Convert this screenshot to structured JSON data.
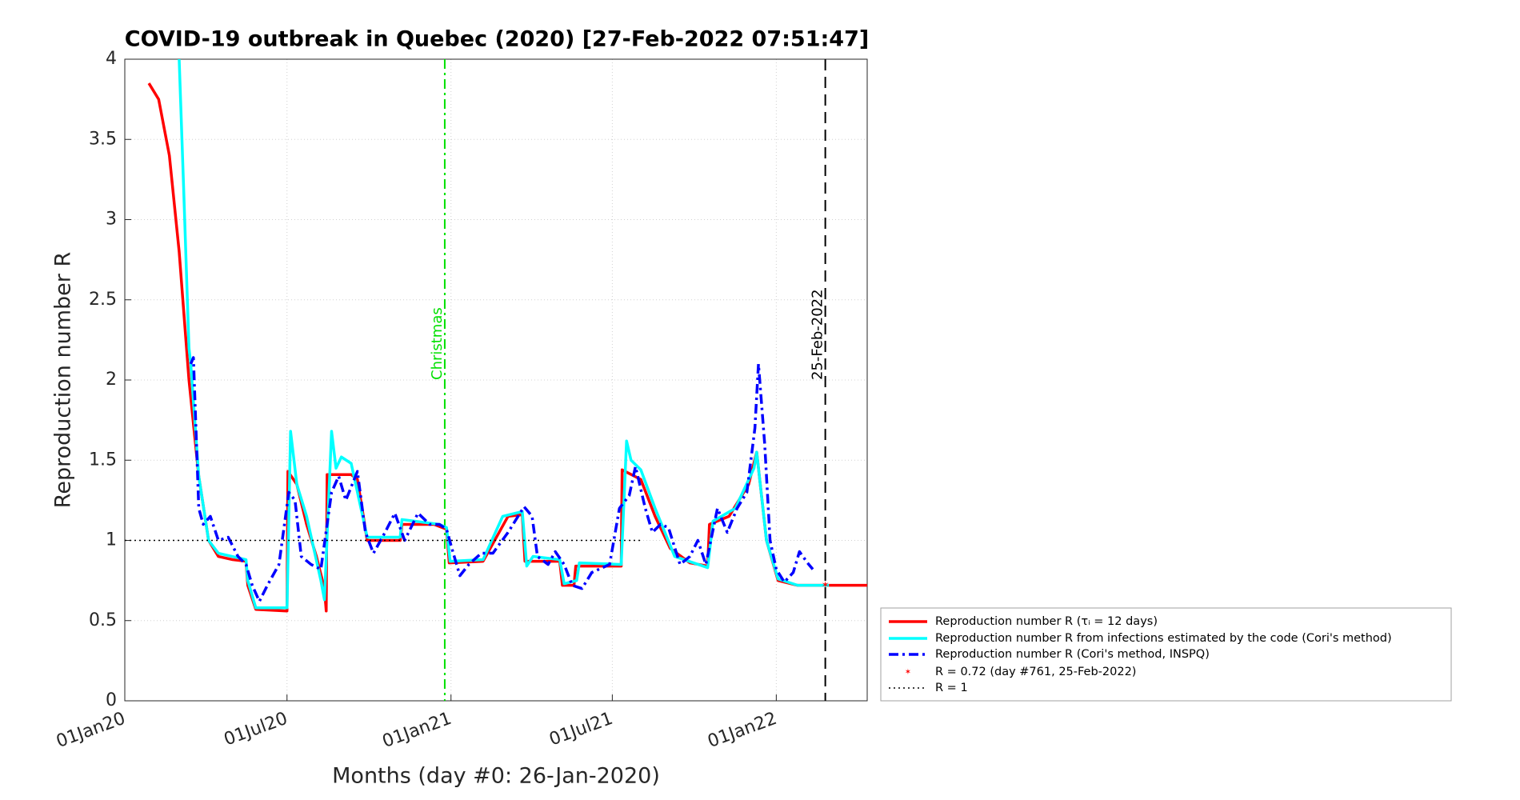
{
  "chart_data": {
    "type": "line",
    "title": "COVID-19 outbreak in Quebec (2020) [27-Feb-2022 07:51:47]",
    "xlabel": "Months (day #0: 26-Jan-2020)",
    "ylabel": "Reproduction number R",
    "xlim": [
      -25,
      808
    ],
    "ylim": [
      0,
      4
    ],
    "xticks": [
      {
        "value": -25,
        "label": "01Jan20"
      },
      {
        "value": 157,
        "label": "01Jul20"
      },
      {
        "value": 341,
        "label": "01Jan21"
      },
      {
        "value": 522,
        "label": "01Jul21"
      },
      {
        "value": 706,
        "label": "01Jan22"
      }
    ],
    "yticks": [
      0,
      0.5,
      1,
      1.5,
      2,
      2.5,
      3,
      3.5,
      4
    ],
    "grid": true,
    "legend": "outside-lower-right",
    "series": [
      {
        "name": "Reproduction number R (τᵢ = 12 days)",
        "color": "#ff0000",
        "style": "solid",
        "x": [
          2,
          13,
          25,
          36,
          47,
          58,
          69,
          80,
          96,
          111,
          113,
          122,
          157,
          158,
          168,
          179,
          190,
          199,
          201,
          202,
          229,
          236,
          247,
          284,
          286,
          322,
          336,
          339,
          377,
          405,
          421,
          424,
          463,
          466,
          479,
          481,
          532,
          533,
          554,
          570,
          587,
          609,
          629,
          631,
          653,
          675,
          684,
          695,
          708,
          730,
          761,
          808
        ],
        "values": [
          3.85,
          3.75,
          3.4,
          2.8,
          2.0,
          1.4,
          1.0,
          0.9,
          0.88,
          0.87,
          0.72,
          0.57,
          0.56,
          1.43,
          1.35,
          1.1,
          0.9,
          0.7,
          0.56,
          1.41,
          1.41,
          1.38,
          1.0,
          1.0,
          1.1,
          1.1,
          1.07,
          0.86,
          0.87,
          1.15,
          1.16,
          0.87,
          0.87,
          0.72,
          0.72,
          0.84,
          0.84,
          1.44,
          1.38,
          1.15,
          0.95,
          0.86,
          0.84,
          1.1,
          1.15,
          1.35,
          1.55,
          1.0,
          0.75,
          0.72,
          0.72,
          0.72
        ]
      },
      {
        "name": "Reproduction number R from infections estimated by the code (Cori's method)",
        "color": "#00ffff",
        "style": "solid",
        "x": [
          36,
          41,
          47,
          49,
          58,
          69,
          80,
          111,
          113,
          122,
          157,
          161,
          168,
          179,
          195,
          199,
          207,
          212,
          218,
          229,
          247,
          284,
          286,
          328,
          336,
          340,
          377,
          399,
          421,
          426,
          433,
          463,
          468,
          482,
          485,
          532,
          538,
          543,
          554,
          570,
          592,
          629,
          635,
          660,
          681,
          684,
          695,
          708,
          730,
          765
        ],
        "values": [
          4.0,
          3.2,
          2.2,
          2.1,
          1.4,
          1.0,
          0.92,
          0.88,
          0.75,
          0.58,
          0.58,
          1.68,
          1.35,
          1.15,
          0.75,
          0.63,
          1.68,
          1.45,
          1.52,
          1.48,
          1.02,
          1.02,
          1.13,
          1.1,
          1.08,
          0.87,
          0.88,
          1.15,
          1.18,
          0.84,
          0.9,
          0.88,
          0.73,
          0.75,
          0.86,
          0.85,
          1.62,
          1.5,
          1.44,
          1.2,
          0.9,
          0.83,
          1.12,
          1.2,
          1.45,
          1.55,
          1.0,
          0.76,
          0.72,
          0.72
        ]
      },
      {
        "name": "Reproduction number R (Cori's method, INSPQ)",
        "color": "#0000ff",
        "style": "dashdot",
        "x": [
          49,
          52,
          58,
          63,
          71,
          80,
          91,
          102,
          111,
          118,
          126,
          135,
          148,
          159,
          166,
          173,
          184,
          195,
          207,
          215,
          223,
          236,
          245,
          254,
          267,
          278,
          289,
          304,
          317,
          328,
          336,
          342,
          351,
          361,
          375,
          388,
          405,
          423,
          432,
          438,
          450,
          458,
          468,
          477,
          488,
          499,
          519,
          530,
          541,
          548,
          559,
          567,
          576,
          585,
          598,
          609,
          618,
          627,
          640,
          651,
          662,
          673,
          682,
          686,
          693,
          699,
          706,
          715,
          725,
          732,
          741,
          747
        ],
        "values": [
          2.1,
          2.14,
          1.2,
          1.1,
          1.15,
          1.0,
          1.02,
          0.9,
          0.85,
          0.72,
          0.62,
          0.72,
          0.85,
          1.3,
          1.25,
          0.9,
          0.85,
          0.82,
          1.3,
          1.4,
          1.25,
          1.43,
          1.05,
          0.92,
          1.05,
          1.17,
          1.0,
          1.17,
          1.1,
          1.1,
          1.07,
          0.95,
          0.78,
          0.85,
          0.92,
          0.92,
          1.05,
          1.21,
          1.15,
          0.9,
          0.85,
          0.93,
          0.85,
          0.72,
          0.7,
          0.8,
          0.85,
          1.2,
          1.28,
          1.46,
          1.2,
          1.05,
          1.1,
          1.08,
          0.85,
          0.9,
          1.0,
          0.85,
          1.2,
          1.05,
          1.2,
          1.3,
          1.7,
          2.1,
          1.6,
          1.0,
          0.82,
          0.74,
          0.8,
          0.93,
          0.86,
          0.82
        ]
      },
      {
        "name": "R = 0.72 (day #761, 25-Feb-2022)",
        "color": "#ff0000",
        "style": "marker",
        "x": [
          761
        ],
        "values": [
          0.72
        ]
      },
      {
        "name": "R = 1",
        "color": "#000000",
        "style": "dotted",
        "x": [
          -25,
          554
        ],
        "values": [
          1,
          1
        ]
      }
    ],
    "vlines": [
      {
        "x": 334,
        "label": "Christmas",
        "color": "#00e000",
        "style": "dashdot"
      },
      {
        "x": 761,
        "label": "25-Feb-2022",
        "color": "#000000",
        "style": "dashed"
      }
    ]
  }
}
